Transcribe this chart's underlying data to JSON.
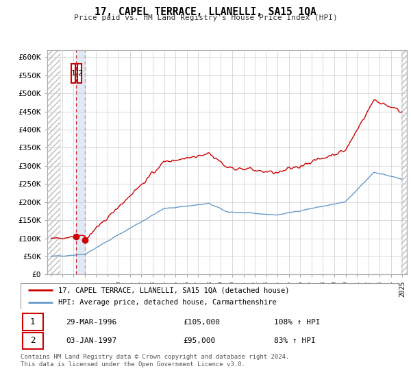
{
  "title": "17, CAPEL TERRACE, LLANELLI, SA15 1QA",
  "subtitle": "Price paid vs. HM Land Registry's House Price Index (HPI)",
  "sale1_date": "29-MAR-1996",
  "sale1_price": 105000,
  "sale1_hpi": "108% ↑ HPI",
  "sale2_date": "03-JAN-1997",
  "sale2_price": 95000,
  "sale2_hpi": "83% ↑ HPI",
  "legend_line1": "17, CAPEL TERRACE, LLANELLI, SA15 1QA (detached house)",
  "legend_line2": "HPI: Average price, detached house, Carmarthenshire",
  "footer": "Contains HM Land Registry data © Crown copyright and database right 2024.\nThis data is licensed under the Open Government Licence v3.0.",
  "red_line_color": "#cc0000",
  "blue_line_color": "#6699cc",
  "marker_color": "#cc0000",
  "grid_color": "#cccccc",
  "background_color": "#ffffff",
  "shaded_bg_color": "#dce8f5",
  "ylim": [
    0,
    620000
  ],
  "ytick_values": [
    0,
    50000,
    100000,
    150000,
    200000,
    250000,
    300000,
    350000,
    400000,
    450000,
    500000,
    550000,
    600000
  ],
  "ytick_labels": [
    "£0",
    "£50K",
    "£100K",
    "£150K",
    "£200K",
    "£250K",
    "£300K",
    "£350K",
    "£400K",
    "£450K",
    "£500K",
    "£550K",
    "£600K"
  ],
  "xlim_start": 1993.7,
  "xlim_end": 2025.4,
  "sale1_x": 1996.24,
  "sale2_x": 1997.01,
  "hatch_right_start": 2024.9
}
